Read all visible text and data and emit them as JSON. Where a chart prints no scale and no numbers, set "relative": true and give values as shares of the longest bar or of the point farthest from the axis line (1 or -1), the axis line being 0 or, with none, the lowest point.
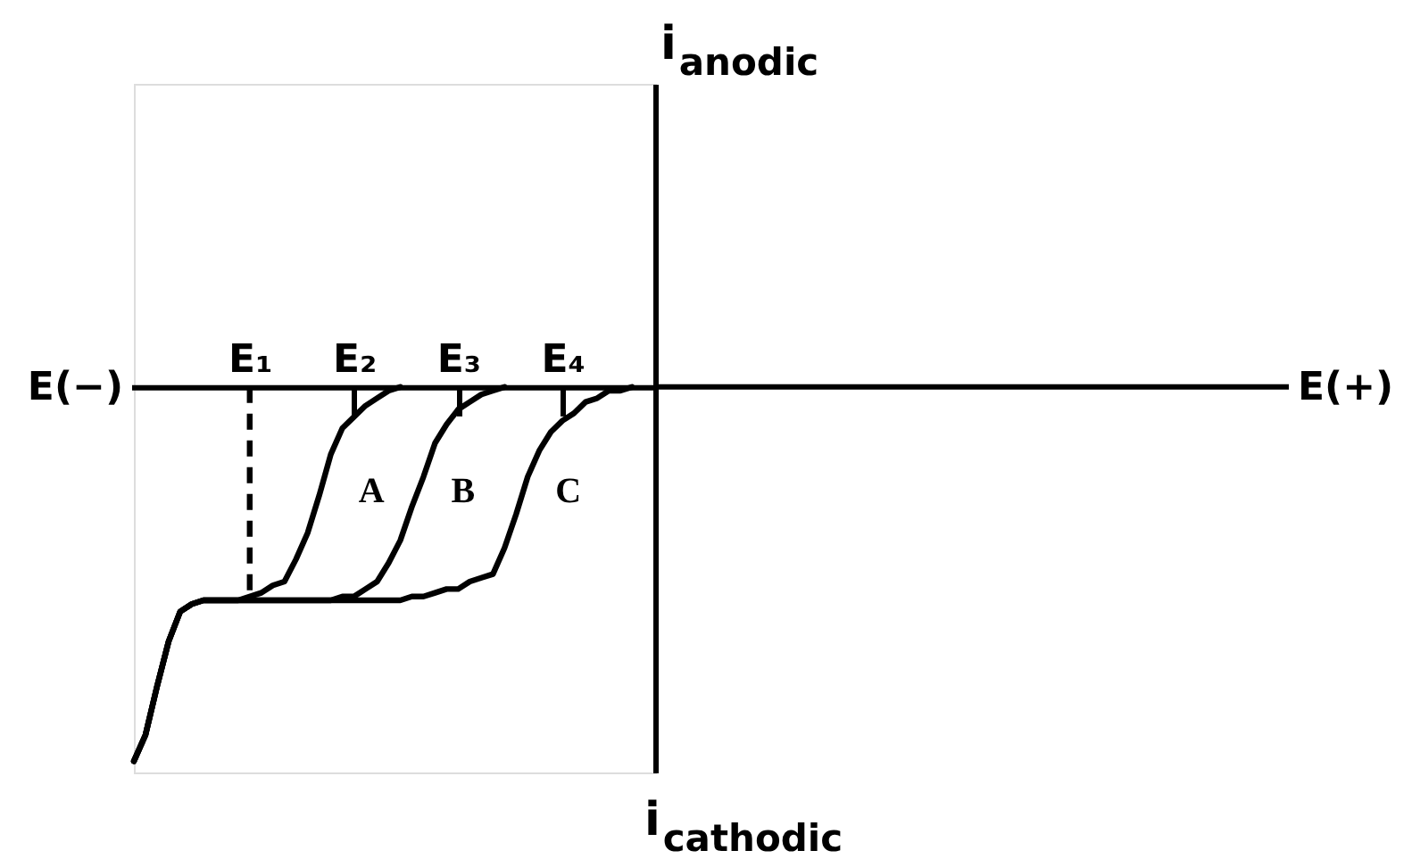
{
  "chart_data": {
    "type": "line",
    "relative": true,
    "line_style": "solid",
    "categories": [
      null,
      null,
      null,
      null,
      null,
      null,
      null,
      null,
      null,
      null,
      "E₁",
      null,
      null,
      null,
      null,
      null,
      null,
      null,
      null,
      "E₂",
      null,
      null,
      null,
      null,
      null,
      null,
      null,
      null,
      "E₃",
      null,
      null,
      null,
      null,
      null,
      null,
      null,
      null,
      "E₄",
      null,
      null,
      null,
      null,
      null,
      null,
      null,
      null
    ],
    "series": [
      {
        "name": "A",
        "color": "#000000",
        "values": [
          -1,
          -0.93,
          -0.8,
          -0.68,
          -0.6,
          -0.58,
          -0.57,
          -0.57,
          -0.57,
          -0.57,
          -0.56,
          -0.55,
          -0.53,
          -0.52,
          -0.46,
          -0.39,
          -0.29,
          -0.18,
          -0.11,
          -0.08,
          -0.05,
          -0.03,
          -0.01,
          0,
          null,
          null,
          null,
          null,
          null,
          null,
          null,
          null,
          null,
          null,
          null,
          null,
          null,
          null,
          null,
          null,
          null,
          null,
          null,
          null,
          null,
          null
        ]
      },
      {
        "name": "B",
        "color": "#000000",
        "values": [
          -1,
          -0.93,
          -0.8,
          -0.68,
          -0.6,
          -0.58,
          -0.57,
          -0.57,
          -0.57,
          -0.57,
          -0.57,
          -0.57,
          -0.57,
          -0.57,
          -0.57,
          -0.57,
          -0.57,
          -0.57,
          -0.56,
          -0.56,
          -0.54,
          -0.52,
          -0.47,
          -0.41,
          -0.32,
          -0.24,
          -0.15,
          -0.1,
          -0.06,
          -0.04,
          -0.02,
          -0.01,
          0,
          null,
          null,
          null,
          null,
          null,
          null,
          null,
          null,
          null,
          null,
          null,
          null,
          null
        ]
      },
      {
        "name": "C",
        "color": "#000000",
        "values": [
          -1,
          -0.93,
          -0.8,
          -0.68,
          -0.6,
          -0.58,
          -0.57,
          -0.57,
          -0.57,
          -0.57,
          -0.57,
          -0.57,
          -0.57,
          -0.57,
          -0.57,
          -0.57,
          -0.57,
          -0.57,
          -0.57,
          -0.57,
          -0.57,
          -0.57,
          -0.57,
          -0.57,
          -0.56,
          -0.56,
          -0.55,
          -0.54,
          -0.54,
          -0.52,
          -0.51,
          -0.5,
          -0.43,
          -0.34,
          -0.24,
          -0.17,
          -0.12,
          -0.09,
          -0.07,
          -0.04,
          -0.03,
          -0.01,
          -0.01,
          0,
          null,
          null
        ]
      },
      {
        "color": "#000000",
        "line_style": "dashed",
        "x": [
          "E₁",
          "E₁"
        ],
        "values": [
          0,
          -0.55
        ]
      }
    ],
    "annotations": [
      "E(−)",
      "E(+)",
      "i$_{anodic}$",
      "i$_{cathodic}$"
    ]
  }
}
